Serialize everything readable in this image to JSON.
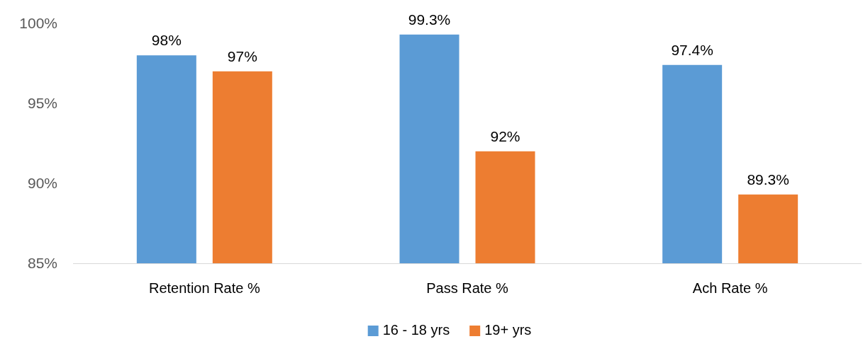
{
  "chart_data": {
    "type": "bar",
    "categories": [
      "Retention Rate %",
      "Pass Rate %",
      "Ach Rate %"
    ],
    "series": [
      {
        "name": "16 - 18 yrs",
        "color": "#5b9bd5",
        "values": [
          98,
          99.3,
          97.4
        ],
        "value_labels": [
          "98%",
          "99.3%",
          "97.4%"
        ]
      },
      {
        "name": "19+ yrs",
        "color": "#ed7d31",
        "values": [
          97,
          92,
          89.3
        ],
        "value_labels": [
          "97%",
          "92%",
          "89.3%"
        ]
      }
    ],
    "ylim": [
      85,
      100
    ],
    "yticks": [
      {
        "value": 85,
        "label": "85%"
      },
      {
        "value": 90,
        "label": "90%"
      },
      {
        "value": 95,
        "label": "95%"
      },
      {
        "value": 100,
        "label": "100%"
      }
    ],
    "grid": false,
    "legend": "bottom"
  }
}
